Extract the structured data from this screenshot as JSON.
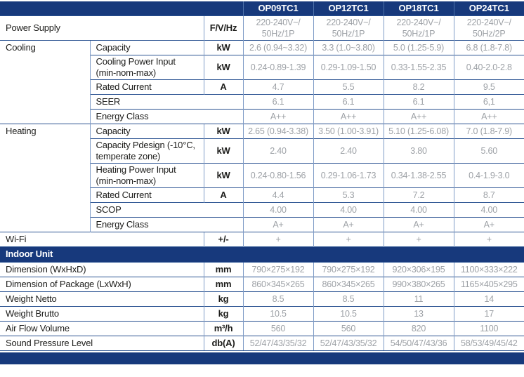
{
  "table": {
    "corner": "",
    "models": [
      "OP09TC1",
      "OP12TC1",
      "OP18TC1",
      "OP24TC1"
    ],
    "rows": [
      {
        "type": "spec",
        "label": "Power Supply",
        "labelSpan": 2,
        "unit": "F/V/Hz",
        "values": [
          "220-240V~/\n50Hz/1P",
          "220-240V~/\n50Hz/1P",
          "220-240V~/\n50Hz/1P",
          "220-240V~/\n50Hz/2P"
        ]
      },
      {
        "type": "spec",
        "group": "Cooling",
        "groupSpan": 5,
        "label": "Capacity",
        "unit": "kW",
        "values": [
          "2.6 (0.94~3.32)",
          "3.3 (1.0~3.80)",
          "5.0 (1.25-5.9)",
          "6.8 (1.8-7.8)"
        ]
      },
      {
        "type": "spec",
        "label": "Cooling Power Input\n(min-nom-max)",
        "unit": "kW",
        "values": [
          "0.24-0.89-1.39",
          "0.29-1.09-1.50",
          "0.33-1.55-2.35",
          "0.40-2.0-2.8"
        ]
      },
      {
        "type": "spec",
        "label": "Rated Current",
        "unit": "A",
        "values": [
          "4.7",
          "5.5",
          "8.2",
          "9.5"
        ]
      },
      {
        "type": "spec",
        "label": "SEER",
        "unit": null,
        "values": [
          "6.1",
          "6.1",
          "6.1",
          "6,1"
        ]
      },
      {
        "type": "spec",
        "label": "Energy Class",
        "unit": null,
        "values": [
          "A++",
          "A++",
          "A++",
          "A++"
        ]
      },
      {
        "type": "spec",
        "group": "Heating",
        "groupSpan": 6,
        "label": "Capacity",
        "unit": "kW",
        "values": [
          "2.65 (0.94-3.38)",
          "3.50 (1.00-3.91)",
          "5.10 (1.25-6.08)",
          "7.0 (1.8-7.9)"
        ]
      },
      {
        "type": "spec",
        "label": "Capacity Pdesign (-10°C,\ntemperate zone)",
        "unit": "kW",
        "values": [
          "2.40",
          "2.40",
          "3.80",
          "5.60"
        ]
      },
      {
        "type": "spec",
        "label": "Heating Power Input\n(min-nom-max)",
        "unit": "kW",
        "values": [
          "0.24-0.80-1.56",
          "0.29-1.06-1.73",
          "0.34-1.38-2.55",
          "0.4-1.9-3.0"
        ]
      },
      {
        "type": "spec",
        "label": "Rated Current",
        "unit": "A",
        "values": [
          "4.4",
          "5.3",
          "7.2",
          "8.7"
        ]
      },
      {
        "type": "spec",
        "label": "SCOP",
        "unit": null,
        "values": [
          "4.00",
          "4.00",
          "4.00",
          "4.00"
        ]
      },
      {
        "type": "spec",
        "label": "Energy Class",
        "unit": null,
        "values": [
          "A+",
          "A+",
          "A+",
          "A+"
        ]
      },
      {
        "type": "spec",
        "label": "Wi-Fi",
        "labelSpan": 2,
        "unit": "+/-",
        "values": [
          "+",
          "+",
          "+",
          "+"
        ]
      },
      {
        "type": "banner",
        "label": "Indoor Unit"
      },
      {
        "type": "spec",
        "label": "Dimension (WxHxD)",
        "labelSpan": 2,
        "unit": "mm",
        "values": [
          "790×275×192",
          "790×275×192",
          "920×306×195",
          "1100×333×222"
        ]
      },
      {
        "type": "spec",
        "label": "Dimension of Package (LxWxH)",
        "labelSpan": 2,
        "unit": "mm",
        "values": [
          "860×345×265",
          "860×345×265",
          "990×380×265",
          "1165×405×295"
        ]
      },
      {
        "type": "spec",
        "label": "Weight Netto",
        "labelSpan": 2,
        "unit": "kg",
        "values": [
          "8.5",
          "8.5",
          "11",
          "14"
        ]
      },
      {
        "type": "spec",
        "label": "Weight Brutto",
        "labelSpan": 2,
        "unit": "kg",
        "values": [
          "10.5",
          "10.5",
          "13",
          "17"
        ]
      },
      {
        "type": "spec",
        "label": "Air Flow Volume",
        "labelSpan": 2,
        "unit": "m³/h",
        "values": [
          "560",
          "560",
          "820",
          "1100"
        ]
      },
      {
        "type": "spec",
        "label": "Sound Pressure Level",
        "labelSpan": 2,
        "unit": "db(A)",
        "values": [
          "52/47/43/35/32",
          "52/47/43/35/32",
          "54/50/47/43/36",
          "58/53/49/45/42"
        ]
      }
    ]
  },
  "colors": {
    "navy": "#17397c",
    "border_h": "#2a5291",
    "border_v": "#7f9cc7",
    "header_sep": "#4e71a9",
    "value_text": "#9da1a6",
    "label_text": "#1d1d1b"
  }
}
